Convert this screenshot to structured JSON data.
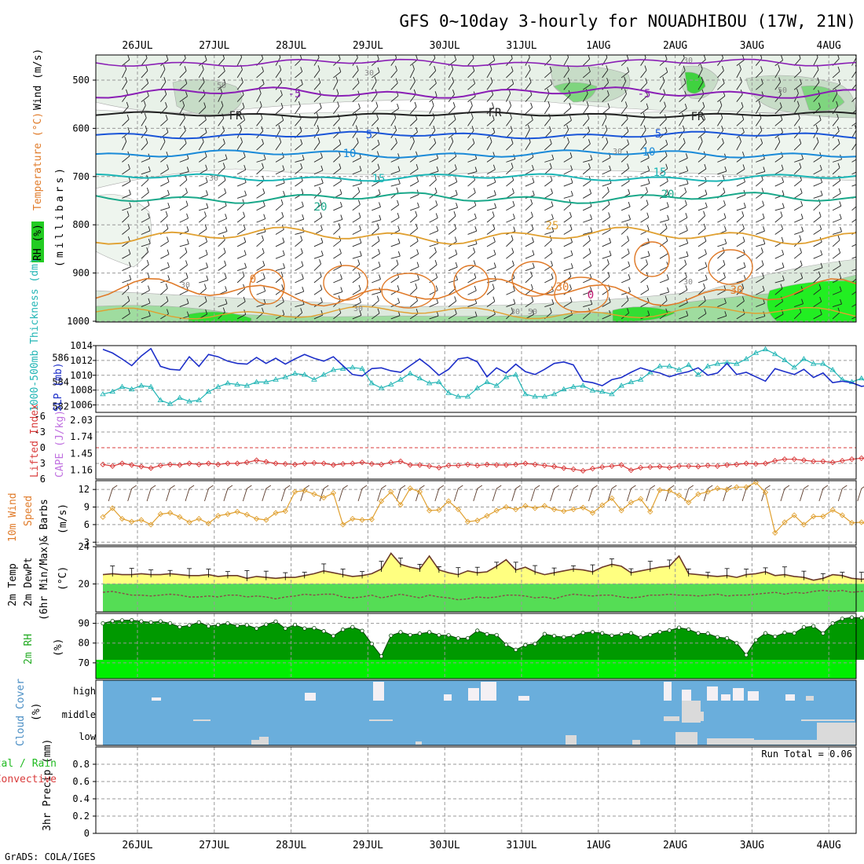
{
  "title": "GFS 0~10day 3-hourly for NOUADHIBOU (17W, 21N)",
  "credit": "GrADS: COLA/IGES",
  "dates": [
    "26JUL",
    "27JUL",
    "28JUL",
    "29JUL",
    "30JUL",
    "31JUL",
    "1AUG",
    "2AUG",
    "3AUG",
    "4AUG"
  ],
  "colors": {
    "temperature": "#e07b2a",
    "wind_label": "#000000",
    "rh": "#00cc00",
    "slp": "#1d2fc9",
    "thickness": "#22b5b5",
    "lifted_index": "#d93b3b",
    "cape": "#c070e0",
    "wind10m": "#e0a030",
    "temp2m_fill": "#ffff80",
    "dewpt_fill": "#55dd55",
    "rh2m_dark": "#009900",
    "rh2m_light": "#00ee00",
    "cloud": "#6aaedc",
    "precip_total": "#22bb22",
    "precip_conv": "#d93b3b"
  },
  "panels": {
    "upper": {
      "labels": {
        "rh": "RH (%)",
        "temperature": "Temperature (°C)",
        "wind": "Wind (m/s)",
        "pressure": "(millibars)"
      },
      "yticks": [
        "500",
        "600",
        "700",
        "800",
        "900",
        "1000"
      ],
      "contour_labels": [
        "-5",
        "-5",
        "FR",
        "FR",
        "FR",
        "5",
        "5",
        "10",
        "10",
        "15",
        "15",
        "20",
        "20",
        "25",
        "30",
        "30",
        "0",
        "0"
      ],
      "rh_labels": [
        "30",
        "50",
        "30",
        "30",
        "30",
        "30",
        "30",
        "50",
        "30",
        "30",
        "50"
      ]
    },
    "slp": {
      "label_left": "1000-500mb Thickness (dm)",
      "label_right": "SLP (mb)",
      "yticks_left": [
        "586",
        "584",
        "582"
      ],
      "yticks_right": [
        "1014",
        "1012",
        "1010",
        "1008",
        "1006"
      ]
    },
    "cape": {
      "label_left": "Lifted Index",
      "label_right": "CAPE (J/kg)",
      "yticks_left": [
        "-6",
        "-3",
        "0",
        "3",
        "6"
      ],
      "yticks_right": [
        "2.03",
        "1.74",
        "1.45",
        "1.16"
      ]
    },
    "wind10m": {
      "label_a": "10m Wind",
      "label_b": "Speed",
      "label_c": "& Barbs",
      "unit": "(m/s)",
      "yticks": [
        "12",
        "9",
        "6",
        "3"
      ]
    },
    "temp2m": {
      "label_a": "2m Temp",
      "label_b": "2m DewPt",
      "label_c": "(6hr Min/Max)",
      "unit": "(°C)",
      "yticks": [
        "24",
        "20"
      ]
    },
    "rh2m": {
      "label": "2m RH",
      "unit": "(%)",
      "yticks": [
        "90",
        "80",
        "70"
      ]
    },
    "cloud": {
      "label_a": "Cloud Cover",
      "unit": "(%)",
      "levels": [
        "high",
        "middle",
        "low"
      ]
    },
    "precip": {
      "label_a": "3hr Precip (mm)",
      "label_b": "Total / Rain",
      "label_c": "Convective",
      "run_total": "Run Total = 0.06",
      "yticks": [
        "0.8",
        "0.6",
        "0.4",
        "0.2",
        "0"
      ]
    }
  },
  "chart_data": [
    {
      "type": "line",
      "name": "SLP",
      "ylim": [
        1005,
        1014
      ],
      "values": [
        1013.5,
        1013,
        1012.2,
        1011.3,
        1012.6,
        1013.6,
        1011.2,
        1010.8,
        1010.7,
        1012.5,
        1011.2,
        1012.8,
        1012.5,
        1011.9,
        1011.6,
        1011.5,
        1012.4,
        1011.6,
        1012.3,
        1011.5,
        1012.2,
        1012.8,
        1012.3,
        1011.9,
        1012.5,
        1011.3,
        1010.1,
        1009.9,
        1010.9,
        1011.0,
        1010.6,
        1010.4,
        1011.3,
        1012.2,
        1011.2,
        1010.0,
        1010.8,
        1012.2,
        1012.4,
        1011.8,
        1009.8,
        1011.0,
        1010.3,
        1011.5,
        1010.5,
        1010.1,
        1010.8,
        1011.6,
        1011.8,
        1011.4,
        1009.2,
        1009.0,
        1008.6,
        1009.4,
        1009.7,
        1010.4,
        1011.0,
        1010.6,
        1010.3,
        1009.8,
        1010.2,
        1010.5,
        1011.0,
        1010.0,
        1010.3,
        1011.6,
        1010.1,
        1010.4,
        1009.8,
        1009.2,
        1010.9,
        1010.5,
        1010.1,
        1010.8,
        1009.7,
        1010.3,
        1009.0,
        1009.2,
        1009.0,
        1008.5,
        1008.7,
        1008.8,
        1007.8,
        1008.3,
        1006.5,
        1007.8,
        1008.9,
        1009.1,
        1009.3,
        1008.1,
        1008.4,
        1007.9,
        1007.0,
        1007.5,
        1007.2,
        1008.2,
        1008.0,
        1009.8,
        1008.4,
        1009.8
      ],
      "ylabel": "SLP (mb)"
    },
    {
      "type": "line",
      "name": "1000-500mb Thickness",
      "ylim": [
        581.5,
        587
      ],
      "values": [
        583.0,
        583.2,
        583.6,
        583.4,
        583.7,
        583.6,
        582.5,
        582.2,
        582.7,
        582.4,
        582.5,
        583.2,
        583.6,
        583.9,
        583.8,
        583.7,
        584.0,
        584.0,
        584.2,
        584.4,
        584.7,
        584.6,
        584.2,
        584.6,
        585.0,
        585.1,
        585.2,
        585.1,
        583.9,
        583.5,
        583.8,
        584.2,
        584.7,
        584.3,
        583.9,
        584.0,
        583.1,
        582.8,
        582.8,
        583.5,
        584.0,
        583.7,
        584.4,
        584.6,
        583.0,
        582.8,
        582.8,
        583.0,
        583.4,
        583.6,
        583.7,
        583.3,
        583.2,
        583.0,
        583.7,
        584.0,
        584.2,
        584.8,
        585.3,
        585.3,
        585.0,
        585.4,
        584.6,
        585.3,
        585.5,
        585.6,
        585.5,
        585.9,
        586.4,
        586.7,
        586.3,
        585.8,
        585.2,
        585.9,
        585.5,
        585.5,
        585.0,
        584.2,
        584.0,
        584.3,
        583.7,
        583.6,
        583.6,
        583.9,
        583.7,
        583.8,
        583.5,
        583.2,
        583.5,
        583.7,
        583.8,
        583.8,
        583.6,
        583.8,
        583.6,
        583.6,
        583.5,
        583.3,
        582.5,
        582.0
      ],
      "ylabel": "1000-500mb Thickness (dm)"
    },
    {
      "type": "line",
      "name": "Lifted Index",
      "ylim": [
        6,
        -6
      ],
      "values": [
        3.2,
        3.5,
        3.0,
        3.3,
        3.6,
        3.9,
        3.4,
        3.2,
        3.3,
        3.0,
        3.2,
        3.0,
        3.2,
        3.0,
        3.0,
        2.8,
        2.4,
        2.7,
        3.0,
        3.1,
        3.2,
        3.0,
        2.9,
        3.0,
        3.3,
        3.1,
        3.0,
        2.8,
        3.1,
        3.2,
        2.8,
        2.6,
        3.3,
        3.3,
        3.5,
        3.8,
        3.4,
        3.4,
        3.2,
        3.4,
        3.2,
        3.3,
        3.3,
        3.2,
        3.0,
        3.2,
        3.4,
        3.6,
        3.9,
        4.1,
        4.4,
        4.0,
        3.7,
        3.5,
        3.3,
        4.3,
        3.8,
        3.7,
        3.6,
        3.8,
        3.5,
        3.5,
        3.6,
        3.4,
        3.5,
        3.3,
        3.2,
        3.0,
        3.1,
        3.0,
        2.5,
        2.2,
        2.2,
        2.4,
        2.6,
        2.6,
        2.8,
        2.5,
        2.2,
        2.0,
        2.2,
        2.6,
        2.4,
        2.7,
        2.9,
        3.0,
        3.3,
        3.5,
        3.0,
        3.4,
        3.6,
        3.9,
        4.3,
        4.5,
        4.0,
        3.2,
        3.0,
        3.0,
        3.1,
        3.1
      ],
      "ylabel": "Lifted Index"
    },
    {
      "type": "bar",
      "name": "CAPE",
      "ylim": [
        1.0,
        2.1
      ],
      "values": [
        0,
        0,
        0,
        0,
        0,
        0,
        0,
        0,
        0,
        0,
        0,
        0,
        0,
        0,
        0,
        0,
        0,
        0,
        0,
        0,
        0,
        0,
        0,
        0,
        0,
        0,
        0,
        0,
        0,
        0,
        0,
        0,
        0,
        0,
        0,
        0,
        0,
        0,
        0,
        0,
        0,
        0,
        0,
        0,
        0,
        0,
        0,
        0,
        0,
        0,
        0,
        0,
        0,
        0,
        0,
        0,
        0,
        0,
        0,
        0,
        0,
        0,
        0,
        0,
        0,
        0,
        0,
        0,
        0,
        0,
        0,
        0,
        0,
        0,
        0,
        0,
        0,
        0,
        0,
        0,
        0,
        0,
        0,
        0,
        0,
        0,
        0,
        0,
        0,
        0,
        0,
        0,
        0,
        0,
        2.03,
        0,
        0,
        0,
        0,
        0
      ],
      "ylabel": "CAPE (J/kg)"
    },
    {
      "type": "line",
      "name": "10m Wind Speed",
      "ylim": [
        2.5,
        13.5
      ],
      "values": [
        7.3,
        8.8,
        7.0,
        6.5,
        6.8,
        6.0,
        7.8,
        8.0,
        7.3,
        6.4,
        7.0,
        6.2,
        7.5,
        7.8,
        8.2,
        7.7,
        7.0,
        6.8,
        8.0,
        8.3,
        11.6,
        11.8,
        11.2,
        10.6,
        11.4,
        6.0,
        7.0,
        6.8,
        6.9,
        10.0,
        11.6,
        9.4,
        12.2,
        11.6,
        8.4,
        8.5,
        10.0,
        8.6,
        6.5,
        6.7,
        7.5,
        8.4,
        9.0,
        8.6,
        9.2,
        8.8,
        9.2,
        8.6,
        8.3,
        8.6,
        8.9,
        8.0,
        9.3,
        10.5,
        8.4,
        9.8,
        10.4,
        8.2,
        11.9,
        11.8,
        11.0,
        9.8,
        11.2,
        11.6,
        12.2,
        12.0,
        12.4,
        12.4,
        13.2,
        11.5,
        4.6,
        6.4,
        7.6,
        6.0,
        7.4,
        7.4,
        8.5,
        7.6,
        6.3,
        6.4,
        5.8,
        7.0,
        7.1,
        7.4,
        9.0,
        8.0,
        7.5,
        6.7,
        6.4,
        5.1,
        4.0,
        5.1,
        4.4,
        3.4,
        3.5,
        3.6,
        3.5,
        3.6,
        3.5,
        3.1
      ],
      "ylabel": "(m/s)"
    },
    {
      "type": "area",
      "name": "2m Temp",
      "ylim": [
        17,
        24
      ],
      "values": [
        21.0,
        21.1,
        21.0,
        21.0,
        21.1,
        21.0,
        21.0,
        21.1,
        21.0,
        20.9,
        20.9,
        21.0,
        20.8,
        20.9,
        20.9,
        20.6,
        20.8,
        20.7,
        20.6,
        20.7,
        20.7,
        20.9,
        21.1,
        21.4,
        21.2,
        21.0,
        20.8,
        20.9,
        21.1,
        21.6,
        23.3,
        22.1,
        21.8,
        21.6,
        23.0,
        21.5,
        21.2,
        21.0,
        21.4,
        21.2,
        21.3,
        21.9,
        22.6,
        21.5,
        21.8,
        21.3,
        21.0,
        21.2,
        21.4,
        21.6,
        21.5,
        21.3,
        21.8,
        22.1,
        21.9,
        21.2,
        21.4,
        21.6,
        21.8,
        21.9,
        23.0,
        21.1,
        21.0,
        20.9,
        20.8,
        20.9,
        20.7,
        21.0,
        21.1,
        21.3,
        20.9,
        21.0,
        20.8,
        20.7,
        20.4,
        20.6,
        21.0,
        20.9,
        20.6,
        20.5,
        20.6,
        20.6,
        20.7,
        20.5,
        20.5,
        20.6,
        20.7,
        20.6,
        20.4,
        20.6,
        20.7,
        20.6,
        20.5,
        20.6,
        21.2,
        21.9,
        22.4,
        22.3,
        22.2,
        22.1
      ],
      "ylabel": "(°C)"
    },
    {
      "type": "line",
      "name": "2m DewPt",
      "ylim": [
        17,
        24
      ],
      "values": [
        19.1,
        19.2,
        19.0,
        18.8,
        18.8,
        18.7,
        18.8,
        18.9,
        18.8,
        18.6,
        18.6,
        18.7,
        18.6,
        18.8,
        18.8,
        18.6,
        18.7,
        18.6,
        18.4,
        18.6,
        18.7,
        18.9,
        18.8,
        18.9,
        18.9,
        18.6,
        18.5,
        18.6,
        18.8,
        18.5,
        18.7,
        18.9,
        18.7,
        18.5,
        18.8,
        18.6,
        18.5,
        18.3,
        18.4,
        18.6,
        18.5,
        18.6,
        18.8,
        18.8,
        18.7,
        18.5,
        18.6,
        18.4,
        18.7,
        18.9,
        18.8,
        18.7,
        18.8,
        18.8,
        18.6,
        18.5,
        18.6,
        18.8,
        18.8,
        18.9,
        18.8,
        18.8,
        18.7,
        18.8,
        18.9,
        18.7,
        18.8,
        18.8,
        18.9,
        19.0,
        19.1,
        18.9,
        19.1,
        19.0,
        19.2,
        19.3,
        19.2,
        19.3,
        19.1,
        19.2,
        19.3,
        19.2,
        19.1,
        19.2,
        19.1,
        19.0,
        19.0,
        18.9,
        18.9,
        18.8,
        18.9,
        19.0,
        18.9,
        18.9,
        19.0,
        19.4,
        19.5,
        19.5,
        19.4,
        19.5
      ],
      "ylabel": "(°C)"
    },
    {
      "type": "area",
      "name": "2m RH",
      "ylim": [
        62,
        95
      ],
      "values": [
        90.0,
        91.2,
        91.5,
        91.6,
        91.0,
        90.5,
        91.0,
        90.0,
        88.2,
        89.0,
        90.5,
        88.6,
        89.2,
        90.0,
        88.8,
        89.1,
        87.4,
        89.4,
        90.9,
        87.4,
        89.2,
        87.4,
        87.6,
        86.0,
        83.6,
        86.8,
        88.1,
        86.2,
        79.6,
        73.3,
        83.8,
        85.5,
        84.1,
        84.8,
        85.5,
        84.0,
        84.0,
        82.4,
        82.5,
        86.3,
        84.5,
        84.1,
        79.2,
        76.6,
        79.0,
        79.6,
        84.6,
        83.6,
        83.0,
        83.6,
        85.2,
        85.6,
        85.0,
        83.8,
        84.5,
        85.0,
        82.8,
        84.1,
        85.6,
        86.4,
        87.8,
        86.9,
        85.0,
        84.8,
        83.0,
        82.5,
        80.0,
        74.0,
        81.5,
        85.0,
        83.3,
        85.2,
        85.0,
        88.0,
        88.5,
        84.9,
        90.0,
        92.3,
        93.0,
        92.7,
        91.9,
        92.1,
        92.2,
        91.8,
        92.0,
        91.3,
        92.2,
        91.7,
        91.9,
        92.5,
        92.9,
        92.8,
        92.2,
        91.6,
        89.0,
        87.8,
        84.8,
        84.6,
        84.5,
        85.1
      ],
      "ylabel": "(%)"
    },
    {
      "type": "bar",
      "name": "3hr Precip",
      "ylim": [
        0,
        1.0
      ],
      "values": [
        0,
        0,
        0,
        0,
        0,
        0,
        0,
        0,
        0,
        0,
        0,
        0,
        0,
        0,
        0,
        0,
        0,
        0,
        0,
        0,
        0,
        0,
        0,
        0,
        0,
        0,
        0,
        0,
        0,
        0,
        0,
        0,
        0,
        0,
        0,
        0,
        0,
        0,
        0,
        0,
        0,
        0,
        0,
        0,
        0,
        0,
        0,
        0,
        0,
        0,
        0,
        0,
        0,
        0,
        0,
        0,
        0,
        0,
        0,
        0,
        0,
        0,
        0,
        0,
        0,
        0,
        0,
        0,
        0,
        0,
        0,
        0,
        0,
        0,
        0,
        0,
        0,
        0,
        0,
        0,
        0,
        0,
        0,
        0,
        0,
        0,
        0,
        0,
        0,
        0,
        0,
        0,
        0,
        0,
        0,
        0,
        0.06,
        0,
        0,
        0
      ],
      "ylabel": "3hr Precip (mm)"
    }
  ]
}
